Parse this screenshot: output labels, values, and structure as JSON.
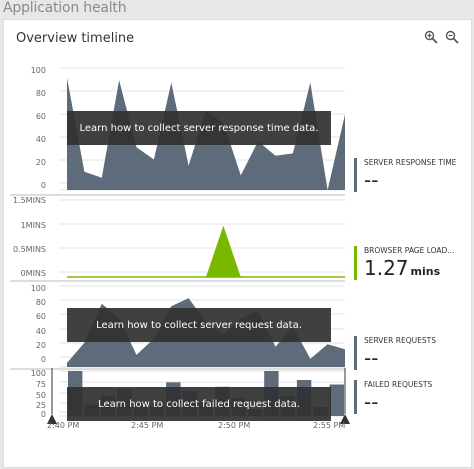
{
  "app_title": "Application health",
  "card_title": "Overview timeline",
  "icons": {
    "zoom_in": "zoom-in-icon",
    "zoom_out": "zoom-out-icon"
  },
  "colors": {
    "series_fill": "#5d6b7b",
    "page_load": "#7ab800",
    "metric_bar": "#5d6b7b"
  },
  "panels": [
    {
      "id": "server-response",
      "yticks": [
        "100",
        "80",
        "60",
        "40",
        "20",
        "0"
      ],
      "overlay": "Learn how to collect server response time data.",
      "metric_label": "SERVER RESPONSE TIME",
      "metric_value": "--",
      "metric_unit": ""
    },
    {
      "id": "browser-page-load",
      "yticks": [
        "1.5MINS",
        "1MINS",
        "0.5MINS",
        "0MINS"
      ],
      "overlay": "",
      "metric_label": "BROWSER PAGE LOAD...",
      "metric_value": "1.27",
      "metric_unit": "mins"
    },
    {
      "id": "server-requests",
      "yticks": [
        "100",
        "80",
        "60",
        "40",
        "20",
        "0"
      ],
      "overlay": "Learn how to collect server request data.",
      "metric_label": "SERVER REQUESTS",
      "metric_value": "--",
      "metric_unit": ""
    },
    {
      "id": "failed-requests",
      "yticks": [
        "100",
        "75",
        "50",
        "25",
        "0"
      ],
      "overlay": "Learn how to collect failed request data.",
      "metric_label": "FAILED REQUESTS",
      "metric_value": "--",
      "metric_unit": ""
    }
  ],
  "x_ticks": [
    "2:40 PM",
    "2:45 PM",
    "2:50 PM",
    "2:55 PM"
  ],
  "chart_data": [
    {
      "type": "area",
      "x": [
        "2:40",
        "2:41",
        "2:42",
        "2:43",
        "2:44",
        "2:45",
        "2:46",
        "2:47",
        "2:48",
        "2:49",
        "2:50",
        "2:51",
        "2:52",
        "2:53",
        "2:54",
        "2:55",
        "2:56"
      ],
      "values": [
        92,
        15,
        10,
        90,
        35,
        25,
        88,
        20,
        65,
        55,
        12,
        40,
        28,
        30,
        88,
        0,
        62
      ],
      "ylim": [
        0,
        100
      ]
    },
    {
      "type": "area",
      "x": [
        "2:40",
        "2:48",
        "2:49",
        "2:50",
        "2:56"
      ],
      "values": [
        0,
        0,
        1.0,
        0,
        0
      ],
      "ylim": [
        0,
        1.5
      ]
    },
    {
      "type": "area",
      "x": [
        "2:40",
        "2:41",
        "2:42",
        "2:43",
        "2:44",
        "2:45",
        "2:46",
        "2:47",
        "2:48",
        "2:49",
        "2:50",
        "2:51",
        "2:52",
        "2:53",
        "2:54",
        "2:55",
        "2:56"
      ],
      "values": [
        5,
        30,
        78,
        60,
        15,
        35,
        75,
        85,
        55,
        40,
        60,
        70,
        25,
        50,
        10,
        28,
        22
      ],
      "ylim": [
        0,
        100
      ]
    },
    {
      "type": "bar",
      "x": [
        "2:40",
        "2:41",
        "2:42",
        "2:43",
        "2:44",
        "2:45",
        "2:46",
        "2:47",
        "2:48",
        "2:49",
        "2:50",
        "2:51",
        "2:52",
        "2:53",
        "2:54",
        "2:55",
        "2:56"
      ],
      "values": [
        100,
        25,
        45,
        60,
        30,
        20,
        75,
        55,
        30,
        65,
        40,
        15,
        100,
        45,
        80,
        20,
        70
      ],
      "ylim": [
        0,
        100
      ]
    }
  ]
}
